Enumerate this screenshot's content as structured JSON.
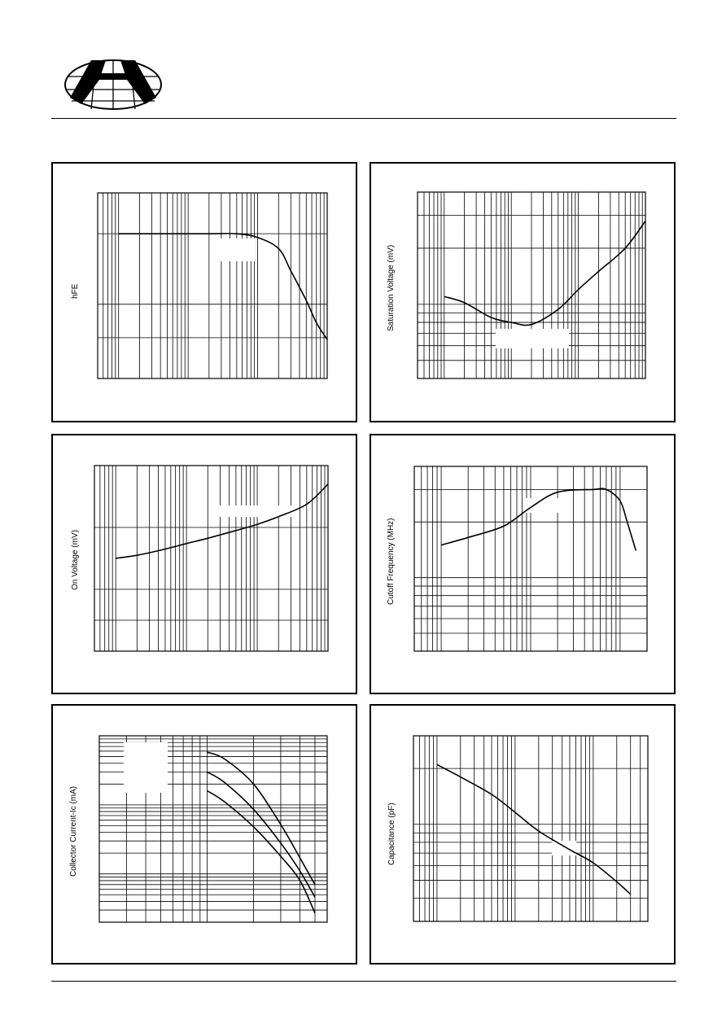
{
  "logo": {
    "name": "company-logo"
  },
  "charts": [
    {
      "id": "hfe",
      "type": "line",
      "ylabel": "hFE",
      "xscale": "log",
      "series": [
        {
          "x": [
            0.1,
            0.2,
            0.5,
            1,
            2,
            5,
            10,
            20,
            30,
            50,
            70,
            100
          ],
          "y": [
            78,
            78,
            78,
            78,
            78,
            78,
            76,
            70,
            58,
            42,
            30,
            21
          ]
        }
      ]
    },
    {
      "id": "vsat",
      "type": "line",
      "ylabel": "Saturation Voltage (mV)",
      "xscale": "log",
      "series": [
        {
          "x": [
            1,
            2,
            5,
            10,
            20,
            50,
            100,
            200,
            500,
            1000
          ],
          "y": [
            110,
            102,
            85,
            80,
            78,
            94,
            120,
            150,
            200,
            280
          ]
        }
      ]
    },
    {
      "id": "von",
      "type": "line",
      "ylabel": "On Voltage (mV)",
      "xscale": "log",
      "series": [
        {
          "x": [
            0.1,
            0.2,
            0.5,
            1,
            2,
            5,
            10,
            20,
            50,
            100
          ],
          "y": [
            800,
            810,
            830,
            848,
            865,
            890,
            910,
            935,
            975,
            1040
          ]
        }
      ]
    },
    {
      "id": "ft",
      "type": "line",
      "ylabel": "Cutoff Frequency (MHz)",
      "xscale": "log",
      "series": [
        {
          "x": [
            0.1,
            0.2,
            0.5,
            1,
            2,
            5,
            7,
            10,
            12,
            15
          ],
          "y": [
            150,
            165,
            190,
            240,
            290,
            300,
            300,
            260,
            200,
            140
          ]
        }
      ]
    },
    {
      "id": "ic",
      "type": "line",
      "ylabel": "Collector Current-Ic (mA)",
      "xscale": "log",
      "series": [
        {
          "x": [
            10,
            13,
            20,
            30,
            40,
            50
          ],
          "y": [
            580,
            460,
            200,
            52,
            17,
            7
          ]
        },
        {
          "x": [
            10,
            13,
            20,
            30,
            40,
            50
          ],
          "y": [
            300,
            210,
            86,
            28,
            11,
            4.6
          ]
        },
        {
          "x": [
            10,
            13,
            20,
            30,
            40,
            50
          ],
          "y": [
            160,
            110,
            48,
            18,
            8,
            2.7
          ]
        }
      ]
    },
    {
      "id": "cap",
      "type": "line",
      "ylabel": "Capacitance (pF)",
      "xscale": "log",
      "series": [
        {
          "x": [
            0.1,
            0.2,
            0.5,
            1,
            2,
            5,
            10,
            20,
            30
          ],
          "y": [
            21,
            18,
            14.5,
            11.6,
            9.2,
            7.3,
            6.2,
            4.9,
            4.2
          ]
        }
      ]
    }
  ]
}
